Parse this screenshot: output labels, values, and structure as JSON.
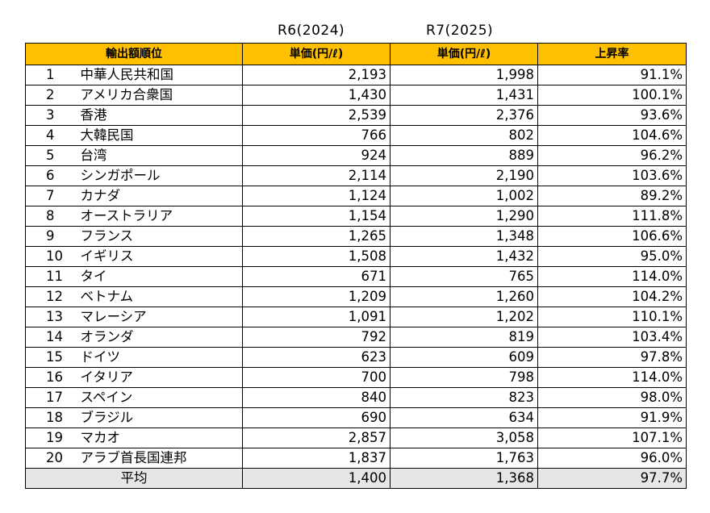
{
  "header_years": {
    "r6": "R6(2024)",
    "r7": "R7(2025)"
  },
  "columns": {
    "rank_country": "輸出額順位",
    "price_r6": "単価(円/ℓ)",
    "price_r7": "単価(円/ℓ)",
    "rate": "上昇率"
  },
  "rows": [
    {
      "rank": "1",
      "country": "中華人民共和国",
      "r6": "2,193",
      "r7": "1,998",
      "rate": "91.1%"
    },
    {
      "rank": "2",
      "country": "アメリカ合衆国",
      "r6": "1,430",
      "r7": "1,431",
      "rate": "100.1%"
    },
    {
      "rank": "3",
      "country": "香港",
      "r6": "2,539",
      "r7": "2,376",
      "rate": "93.6%"
    },
    {
      "rank": "4",
      "country": "大韓民国",
      "r6": "766",
      "r7": "802",
      "rate": "104.6%"
    },
    {
      "rank": "5",
      "country": "台湾",
      "r6": "924",
      "r7": "889",
      "rate": "96.2%"
    },
    {
      "rank": "6",
      "country": "シンガポール",
      "r6": "2,114",
      "r7": "2,190",
      "rate": "103.6%"
    },
    {
      "rank": "7",
      "country": "カナダ",
      "r6": "1,124",
      "r7": "1,002",
      "rate": "89.2%"
    },
    {
      "rank": "8",
      "country": "オーストラリア",
      "r6": "1,154",
      "r7": "1,290",
      "rate": "111.8%"
    },
    {
      "rank": "9",
      "country": "フランス",
      "r6": "1,265",
      "r7": "1,348",
      "rate": "106.6%"
    },
    {
      "rank": "10",
      "country": "イギリス",
      "r6": "1,508",
      "r7": "1,432",
      "rate": "95.0%"
    },
    {
      "rank": "11",
      "country": "タイ",
      "r6": "671",
      "r7": "765",
      "rate": "114.0%"
    },
    {
      "rank": "12",
      "country": "ベトナム",
      "r6": "1,209",
      "r7": "1,260",
      "rate": "104.2%"
    },
    {
      "rank": "13",
      "country": "マレーシア",
      "r6": "1,091",
      "r7": "1,202",
      "rate": "110.1%"
    },
    {
      "rank": "14",
      "country": "オランダ",
      "r6": "792",
      "r7": "819",
      "rate": "103.4%"
    },
    {
      "rank": "15",
      "country": "ドイツ",
      "r6": "623",
      "r7": "609",
      "rate": "97.8%"
    },
    {
      "rank": "16",
      "country": "イタリア",
      "r6": "700",
      "r7": "798",
      "rate": "114.0%"
    },
    {
      "rank": "17",
      "country": "スペイン",
      "r6": "840",
      "r7": "823",
      "rate": "98.0%"
    },
    {
      "rank": "18",
      "country": "ブラジル",
      "r6": "690",
      "r7": "634",
      "rate": "91.9%"
    },
    {
      "rank": "19",
      "country": "マカオ",
      "r6": "2,857",
      "r7": "3,058",
      "rate": "107.1%"
    },
    {
      "rank": "20",
      "country": "アラブ首長国連邦",
      "r6": "1,837",
      "r7": "1,763",
      "rate": "96.0%"
    }
  ],
  "average": {
    "label": "平均",
    "r6": "1,400",
    "r7": "1,368",
    "rate": "97.7%"
  },
  "colors": {
    "header_bg": "#ffc000",
    "average_bg": "#e7e6e6",
    "border": "#000000"
  }
}
